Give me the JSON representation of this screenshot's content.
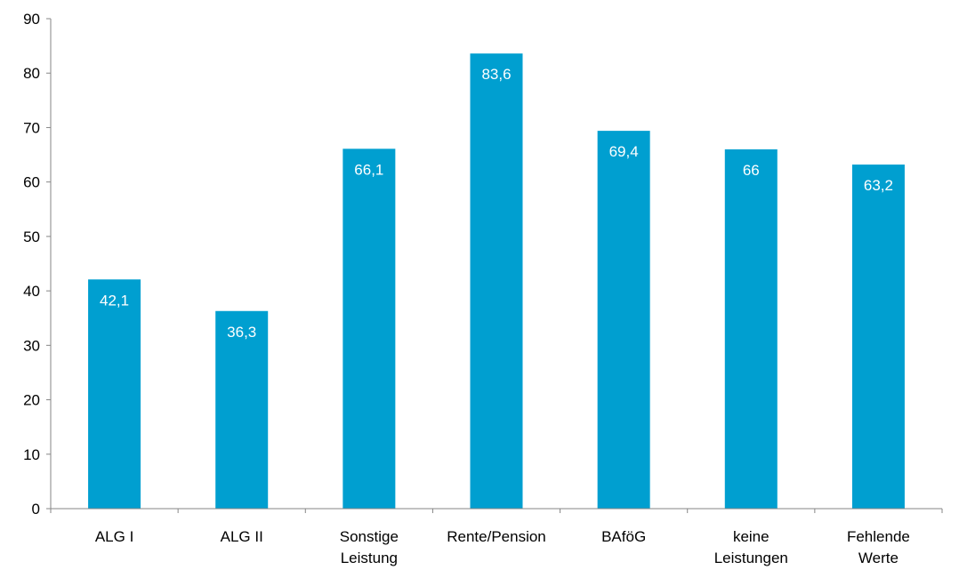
{
  "chart_data": {
    "type": "bar",
    "categories": [
      [
        "ALG I"
      ],
      [
        "ALG II"
      ],
      [
        "Sonstige",
        "Leistung"
      ],
      [
        "Rente/Pension"
      ],
      [
        "BAföG"
      ],
      [
        "keine",
        "Leistungen"
      ],
      [
        "Fehlende",
        "Werte"
      ]
    ],
    "values": [
      42.1,
      36.3,
      66.1,
      83.6,
      69.4,
      66,
      63.2
    ],
    "value_labels": [
      "42,1",
      "36,3",
      "66,1",
      "83,6",
      "69,4",
      "66",
      "63,2"
    ],
    "title": "",
    "xlabel": "",
    "ylabel": "",
    "ylim": [
      0,
      90
    ],
    "yticks": [
      0,
      10,
      20,
      30,
      40,
      50,
      60,
      70,
      80,
      90
    ],
    "grid": false,
    "legend": "none",
    "bar_color": "#009fd0"
  }
}
